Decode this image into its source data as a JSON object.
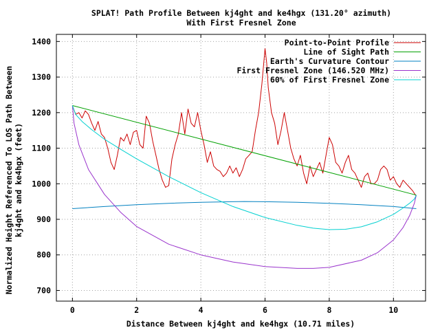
{
  "chart_data": {
    "type": "line",
    "title": "SPLAT! Path Profile Between kj4ght and ke4hgx (131.20° azimuth)",
    "subtitle": "With First Fresnel Zone",
    "xlabel": "Distance Between kj4ght and ke4hgx (10.71 miles)",
    "ylabel_line1": "Normalized Height Referenced To LOS Path Between",
    "ylabel_line2": "kj4ght and ke4hgx (feet)",
    "xlim": [
      -0.5,
      11.0
    ],
    "ylim": [
      670,
      1420
    ],
    "x_ticks": [
      0,
      2,
      4,
      6,
      8,
      10
    ],
    "y_ticks": [
      700,
      800,
      900,
      1000,
      1100,
      1200,
      1300,
      1400
    ],
    "grid": true,
    "legend_position": "top-right",
    "series": [
      {
        "name": "Point-to-Point Profile",
        "color": "#cc0000",
        "x": [
          0,
          0.1,
          0.2,
          0.3,
          0.4,
          0.5,
          0.6,
          0.7,
          0.8,
          0.9,
          1.0,
          1.1,
          1.2,
          1.3,
          1.4,
          1.5,
          1.6,
          1.7,
          1.8,
          1.9,
          2.0,
          2.1,
          2.2,
          2.3,
          2.4,
          2.5,
          2.6,
          2.7,
          2.8,
          2.9,
          3.0,
          3.1,
          3.2,
          3.3,
          3.4,
          3.5,
          3.6,
          3.7,
          3.8,
          3.9,
          4.0,
          4.1,
          4.2,
          4.3,
          4.4,
          4.5,
          4.6,
          4.7,
          4.8,
          4.9,
          5.0,
          5.1,
          5.2,
          5.3,
          5.4,
          5.5,
          5.6,
          5.7,
          5.8,
          5.9,
          6.0,
          6.05,
          6.1,
          6.2,
          6.3,
          6.4,
          6.5,
          6.6,
          6.7,
          6.8,
          6.9,
          7.0,
          7.1,
          7.2,
          7.3,
          7.4,
          7.5,
          7.6,
          7.7,
          7.8,
          7.9,
          8.0,
          8.1,
          8.2,
          8.3,
          8.4,
          8.5,
          8.6,
          8.7,
          8.8,
          8.9,
          9.0,
          9.1,
          9.2,
          9.3,
          9.4,
          9.5,
          9.6,
          9.7,
          9.8,
          9.9,
          10.0,
          10.1,
          10.2,
          10.3,
          10.4,
          10.5,
          10.6,
          10.71
        ],
        "y": [
          1220,
          1195,
          1200,
          1185,
          1205,
          1195,
          1170,
          1150,
          1175,
          1140,
          1130,
          1100,
          1060,
          1040,
          1080,
          1130,
          1120,
          1140,
          1110,
          1145,
          1150,
          1110,
          1100,
          1190,
          1170,
          1120,
          1080,
          1040,
          1010,
          990,
          995,
          1070,
          1110,
          1140,
          1200,
          1140,
          1210,
          1170,
          1160,
          1200,
          1150,
          1110,
          1060,
          1090,
          1050,
          1040,
          1035,
          1020,
          1030,
          1050,
          1030,
          1045,
          1020,
          1040,
          1070,
          1080,
          1090,
          1150,
          1200,
          1280,
          1380,
          1340,
          1270,
          1200,
          1170,
          1110,
          1150,
          1200,
          1150,
          1100,
          1070,
          1050,
          1080,
          1030,
          1000,
          1050,
          1020,
          1040,
          1060,
          1030,
          1080,
          1130,
          1110,
          1060,
          1050,
          1030,
          1060,
          1080,
          1040,
          1030,
          1010,
          990,
          1020,
          1030,
          1000,
          1000,
          1010,
          1040,
          1050,
          1040,
          1010,
          1020,
          1000,
          990,
          1010,
          1000,
          990,
          980,
          965
        ]
      },
      {
        "name": "Line of Sight Path",
        "color": "#00a000",
        "x": [
          0,
          10.71
        ],
        "y": [
          1220,
          968
        ]
      },
      {
        "name": "Earth's Curvature Contour",
        "color": "#0080c0",
        "x": [
          0,
          1.0,
          2.0,
          3.0,
          4.0,
          5.0,
          5.35,
          6.0,
          7.0,
          8.0,
          9.0,
          10.0,
          10.71
        ],
        "y": [
          930,
          936,
          941,
          945,
          948,
          949.5,
          950,
          949.5,
          948,
          945,
          941,
          936,
          930
        ]
      },
      {
        "name": "First Fresnel Zone (146.520 MHz)",
        "color": "#9932cc",
        "x": [
          0,
          0.05,
          0.2,
          0.5,
          1.0,
          1.5,
          2.0,
          3.0,
          4.0,
          5.0,
          6.0,
          7.0,
          7.5,
          8.0,
          9.0,
          9.5,
          10.0,
          10.3,
          10.5,
          10.65,
          10.71
        ],
        "y": [
          1220,
          1170,
          1110,
          1040,
          970,
          920,
          880,
          830,
          800,
          780,
          767,
          762,
          762,
          765,
          785,
          806,
          842,
          877,
          910,
          945,
          968
        ]
      },
      {
        "name": "60% of First Fresnel Zone",
        "color": "#00d0d0",
        "x": [
          0,
          0.1,
          0.3,
          0.6,
          1.0,
          1.5,
          2.0,
          3.0,
          4.0,
          5.0,
          6.0,
          7.0,
          7.5,
          8.0,
          8.5,
          9.0,
          9.5,
          10.0,
          10.3,
          10.5,
          10.65,
          10.71
        ],
        "y": [
          1220,
          1195,
          1175,
          1152,
          1125,
          1097,
          1070,
          1020,
          975,
          936,
          905,
          883,
          875,
          871,
          872,
          879,
          893,
          914,
          932,
          945,
          957,
          968
        ]
      }
    ]
  }
}
